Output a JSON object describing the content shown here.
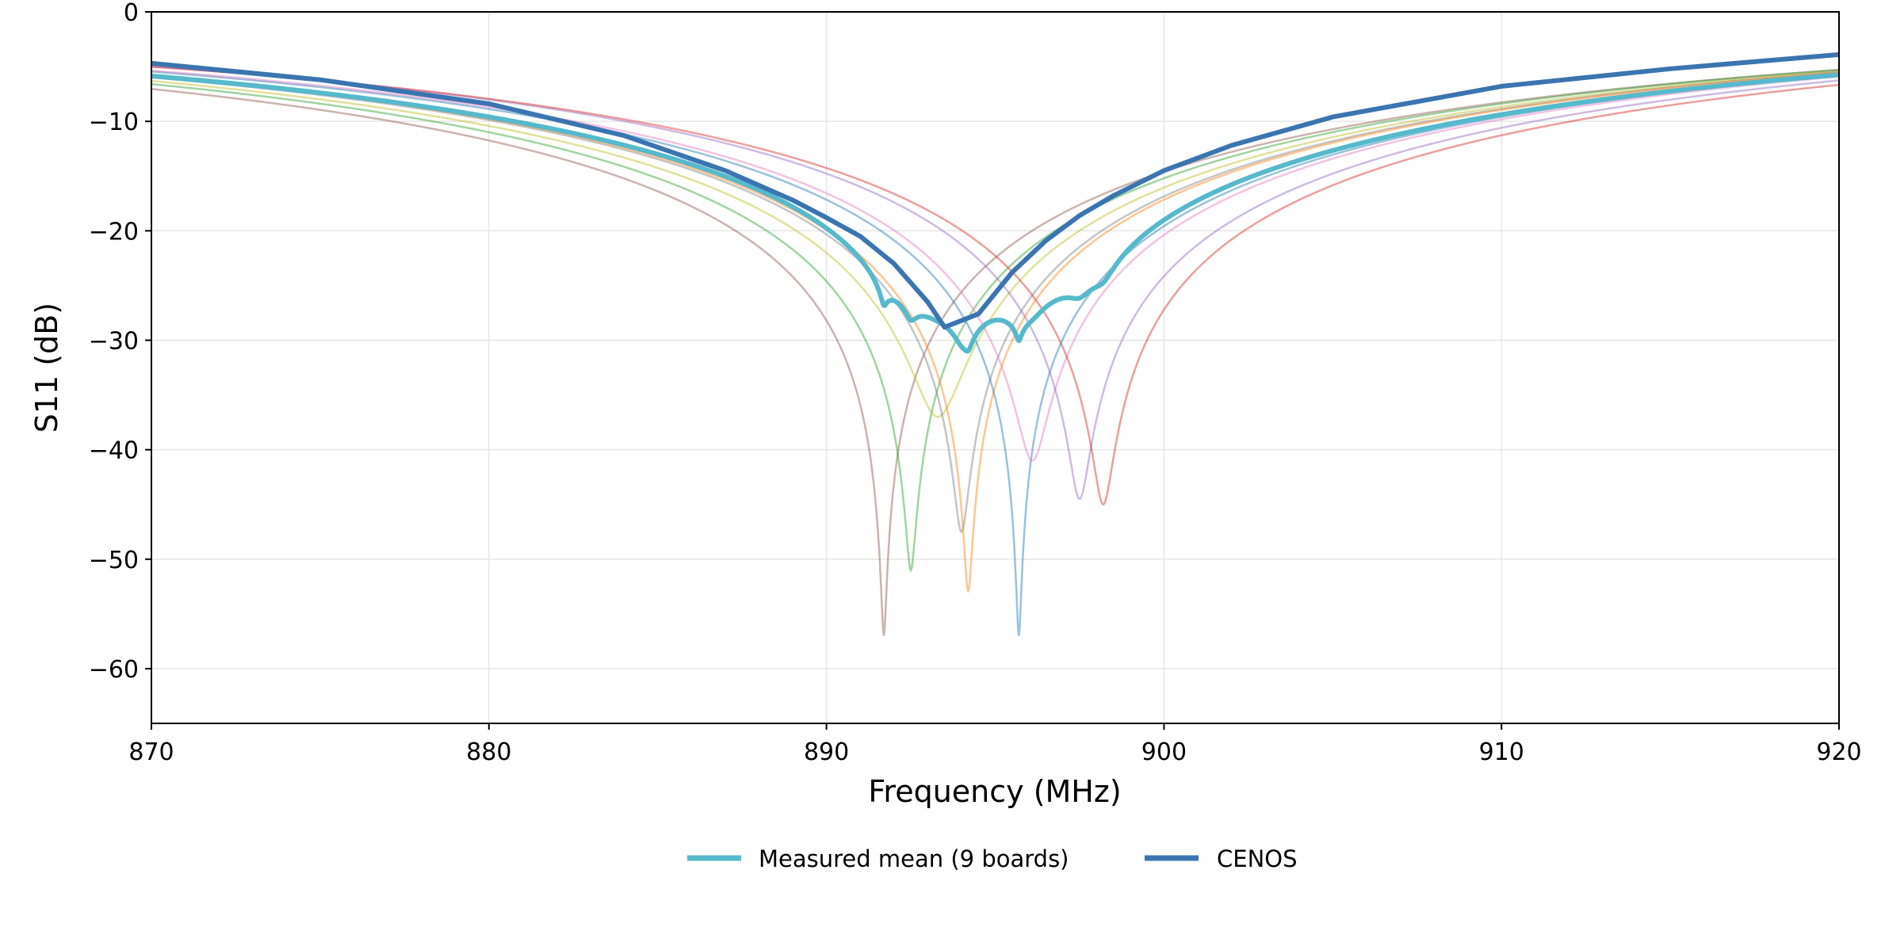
{
  "chart_data": {
    "type": "line",
    "xlabel": "Frequency (MHz)",
    "ylabel": "S11 (dB)",
    "xlim": [
      870,
      920
    ],
    "ylim": [
      -65,
      0
    ],
    "xticks": [
      "870",
      "880",
      "890",
      "900",
      "910",
      "920"
    ],
    "xtick_values": [
      870,
      880,
      890,
      900,
      910,
      920
    ],
    "yticks": [
      "0",
      "−10",
      "−20",
      "−30",
      "−40",
      "−50",
      "−60"
    ],
    "ytick_values": [
      0,
      -10,
      -20,
      -30,
      -40,
      -50,
      -60
    ],
    "grid": true,
    "legend_placement": "bottom-center",
    "boards": [
      {
        "f0": 891.7,
        "min_db": -57,
        "q": 10.2,
        "color": "#8c564b"
      },
      {
        "f0": 892.5,
        "min_db": -51,
        "q": 10.5,
        "color": "#2ca02c"
      },
      {
        "f0": 893.3,
        "min_db": -37,
        "q": 10.6,
        "color": "#bcbd22"
      },
      {
        "f0": 894.0,
        "min_db": -47.5,
        "q": 10.8,
        "color": "#7f7f7f"
      },
      {
        "f0": 894.2,
        "min_db": -53,
        "q": 10.8,
        "color": "#ff7f0e"
      },
      {
        "f0": 895.7,
        "min_db": -57,
        "q": 11.0,
        "color": "#1f77b4"
      },
      {
        "f0": 896.1,
        "min_db": -41,
        "q": 11.0,
        "color": "#e377c2"
      },
      {
        "f0": 897.5,
        "min_db": -44.5,
        "q": 11.1,
        "color": "#9467bd"
      },
      {
        "f0": 898.2,
        "min_db": -45,
        "q": 10.8,
        "color": "#d62728"
      }
    ],
    "series": [
      {
        "name": "Measured mean (9 boards)",
        "color": "#56b9cc",
        "derived": "mean of boards (dB)"
      },
      {
        "name": "CENOS",
        "color": "#3a75b0",
        "points": [
          [
            870,
            -4.7
          ],
          [
            875,
            -6.2
          ],
          [
            880,
            -8.4
          ],
          [
            884,
            -11.3
          ],
          [
            887,
            -14.5
          ],
          [
            889,
            -17.2
          ],
          [
            890,
            -18.8
          ],
          [
            891,
            -20.5
          ],
          [
            892,
            -23.0
          ],
          [
            893,
            -26.5
          ],
          [
            893.5,
            -28.8
          ],
          [
            894.5,
            -27.6
          ],
          [
            895.5,
            -23.8
          ],
          [
            896.5,
            -20.9
          ],
          [
            897.5,
            -18.6
          ],
          [
            898.5,
            -16.8
          ],
          [
            900,
            -14.5
          ],
          [
            902,
            -12.2
          ],
          [
            905,
            -9.6
          ],
          [
            910,
            -6.8
          ],
          [
            915,
            -5.2
          ],
          [
            920,
            -3.9
          ]
        ]
      }
    ]
  }
}
